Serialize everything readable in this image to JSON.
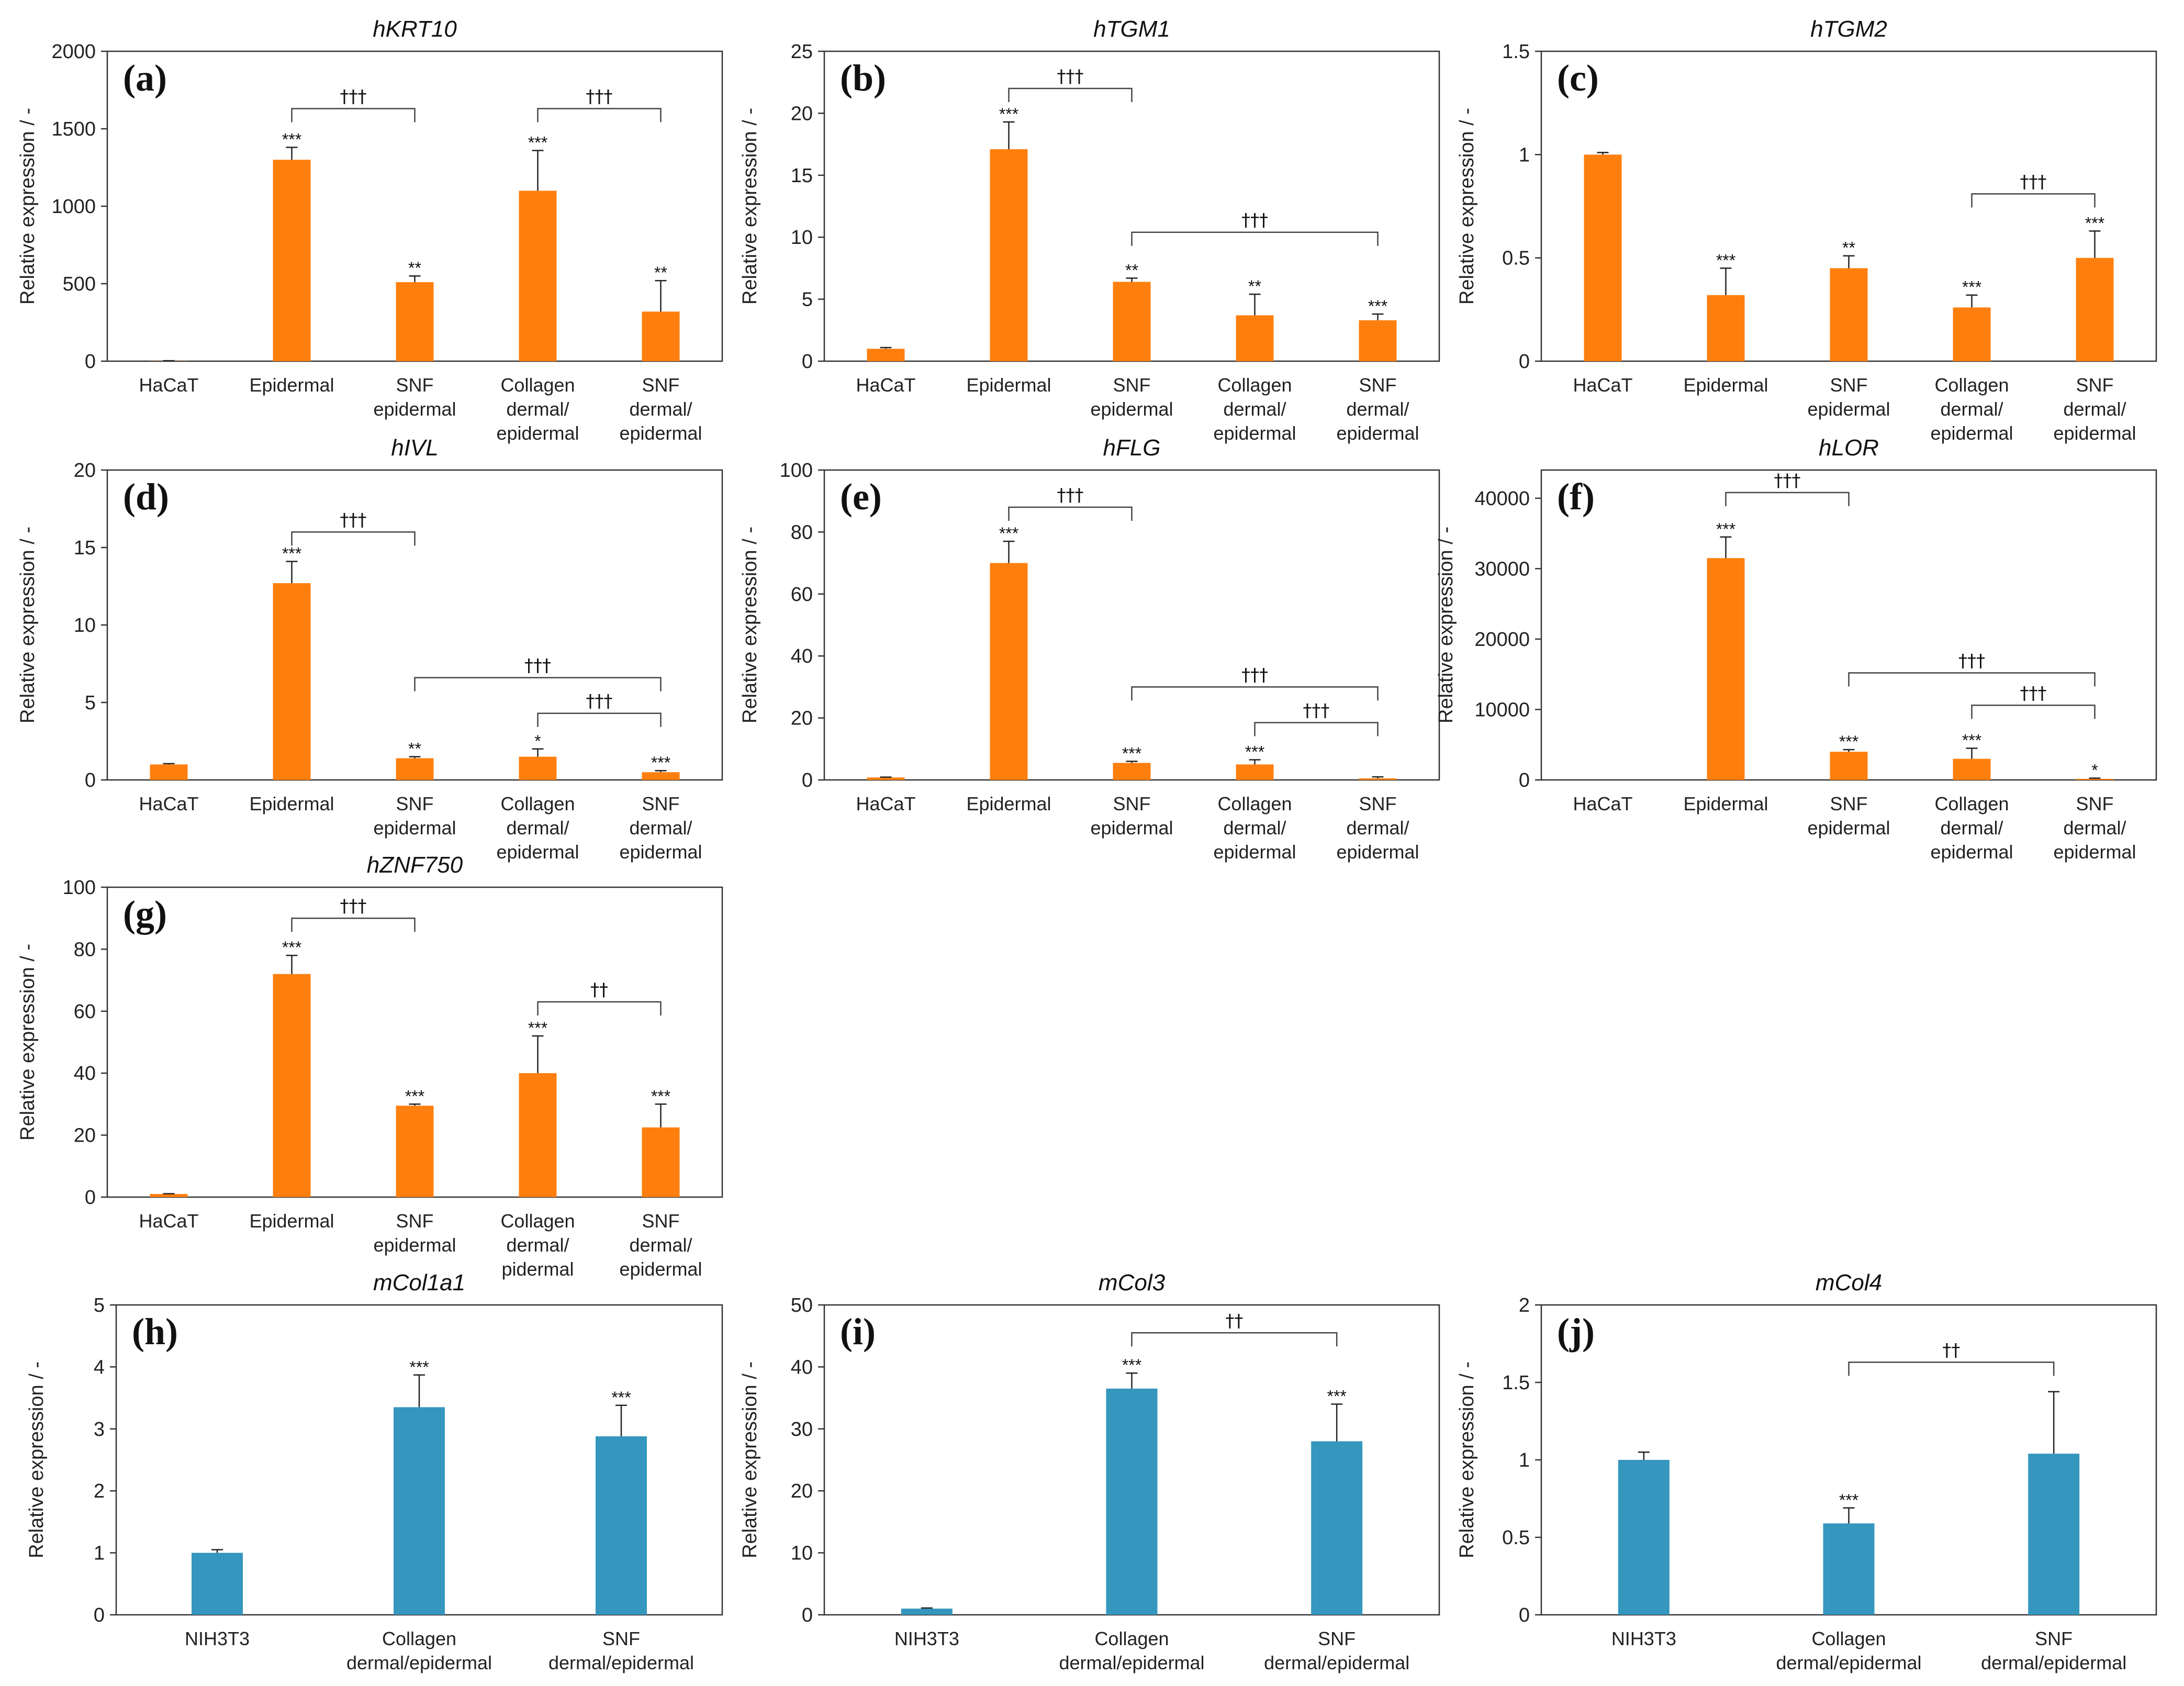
{
  "colors": {
    "orange": "#FF7F0E",
    "blue": "#3596BE",
    "axis": "#333333"
  },
  "y_label": "Relative expression / -",
  "chart_data": [
    {
      "id": "a",
      "type": "bar",
      "label": "(a)",
      "title": "hKRT10",
      "color": "orange",
      "categories": [
        "HaCaT",
        "Epidermal",
        "SNF|epidermal",
        "Collagen|dermal/|epidermal",
        "SNF|dermal/|epidermal"
      ],
      "values": [
        1,
        1300,
        510,
        1100,
        320
      ],
      "errors": [
        2,
        80,
        40,
        260,
        200
      ],
      "ylim": [
        0,
        2000
      ],
      "yticks": [
        "0",
        "500",
        "1000",
        "1500",
        "2000"
      ],
      "stars": [
        "",
        "***",
        "**",
        "***",
        "**"
      ],
      "brackets": [
        {
          "from": 1,
          "to": 2,
          "sig": "†††",
          "y": 1630
        },
        {
          "from": 3,
          "to": 4,
          "sig": "†††",
          "y": 1630
        }
      ]
    },
    {
      "id": "b",
      "type": "bar",
      "label": "(b)",
      "title": "hTGM1",
      "color": "orange",
      "categories": [
        "HaCaT",
        "Epidermal",
        "SNF|epidermal",
        "Collagen|dermal/|epidermal",
        "SNF|dermal/|epidermal"
      ],
      "values": [
        1,
        17.1,
        6.4,
        3.7,
        3.3
      ],
      "errors": [
        0.1,
        2.2,
        0.3,
        1.7,
        0.5
      ],
      "ylim": [
        0,
        25
      ],
      "yticks": [
        "0",
        "5",
        "10",
        "15",
        "20",
        "25"
      ],
      "stars": [
        "",
        "***",
        "**",
        "**",
        "***"
      ],
      "brackets": [
        {
          "from": 1,
          "to": 2,
          "sig": "†††",
          "y": 22
        },
        {
          "from": 2,
          "to": 4,
          "sig": "†††",
          "y": 10.4
        }
      ]
    },
    {
      "id": "c",
      "type": "bar",
      "label": "(c)",
      "title": "hTGM2",
      "color": "orange",
      "categories": [
        "HaCaT",
        "Epidermal",
        "SNF|epidermal",
        "Collagen|dermal/|epidermal",
        "SNF|dermal/|epidermal"
      ],
      "values": [
        1,
        0.32,
        0.45,
        0.26,
        0.5
      ],
      "errors": [
        0.01,
        0.13,
        0.06,
        0.06,
        0.13
      ],
      "ylim": [
        0,
        1.5
      ],
      "yticks": [
        "0",
        "0.5",
        "1",
        "1.5"
      ],
      "stars": [
        "",
        "***",
        "**",
        "***",
        "***"
      ],
      "brackets": [
        {
          "from": 3,
          "to": 4,
          "sig": "†††",
          "y": 0.81
        }
      ]
    },
    {
      "id": "d",
      "type": "bar",
      "label": "(d)",
      "title": "hIVL",
      "color": "orange",
      "categories": [
        "HaCaT",
        "Epidermal",
        "SNF|epidermal",
        "Collagen|dermal/|epidermal",
        "SNF|dermal/|epidermal"
      ],
      "values": [
        1,
        12.7,
        1.4,
        1.5,
        0.5
      ],
      "errors": [
        0.05,
        1.4,
        0.1,
        0.5,
        0.1
      ],
      "ylim": [
        0,
        20
      ],
      "yticks": [
        "0",
        "5",
        "10",
        "15",
        "20"
      ],
      "stars": [
        "",
        "***",
        "**",
        "*",
        "***"
      ],
      "brackets": [
        {
          "from": 1,
          "to": 2,
          "sig": "†††",
          "y": 16
        },
        {
          "from": 2,
          "to": 4,
          "sig": "†††",
          "y": 6.6
        },
        {
          "from": 3,
          "to": 4,
          "sig": "†††",
          "y": 4.3
        }
      ]
    },
    {
      "id": "e",
      "type": "bar",
      "label": "(e)",
      "title": "hFLG",
      "color": "orange",
      "categories": [
        "HaCaT",
        "Epidermal",
        "SNF|epidermal",
        "Collagen|dermal/|epidermal",
        "SNF|dermal/|epidermal"
      ],
      "values": [
        0.8,
        70,
        5.5,
        5,
        0.5
      ],
      "errors": [
        0.1,
        7,
        0.5,
        1.5,
        0.5
      ],
      "ylim": [
        0,
        100
      ],
      "yticks": [
        "0",
        "20",
        "40",
        "60",
        "80",
        "100"
      ],
      "stars": [
        "",
        "***",
        "***",
        "***",
        ""
      ],
      "brackets": [
        {
          "from": 1,
          "to": 2,
          "sig": "†††",
          "y": 88
        },
        {
          "from": 2,
          "to": 4,
          "sig": "†††",
          "y": 30
        },
        {
          "from": 3,
          "to": 4,
          "sig": "†††",
          "y": 18.5
        }
      ]
    },
    {
      "id": "f",
      "type": "bar",
      "label": "(f)",
      "title": "hLOR",
      "color": "orange",
      "categories": [
        "HaCaT",
        "Epidermal",
        "SNF|epidermal",
        "Collagen|dermal/|epidermal",
        "SNF|dermal/|epidermal"
      ],
      "values": [
        1,
        31500,
        4000,
        3000,
        150
      ],
      "errors": [
        0,
        3000,
        300,
        1500,
        100
      ],
      "ylim": [
        0,
        44000
      ],
      "yticks": [
        "0",
        "10000",
        "20000",
        "30000",
        "40000"
      ],
      "stars": [
        "",
        "***",
        "***",
        "***",
        "*"
      ],
      "brackets": [
        {
          "from": 1,
          "to": 2,
          "sig": "†††",
          "y": 40800
        },
        {
          "from": 2,
          "to": 4,
          "sig": "†††",
          "y": 15200
        },
        {
          "from": 3,
          "to": 4,
          "sig": "†††",
          "y": 10600
        }
      ]
    },
    {
      "id": "g",
      "type": "bar",
      "label": "(g)",
      "title": "hZNF750",
      "color": "orange",
      "categories": [
        "HaCaT",
        "Epidermal",
        "SNF|epidermal",
        "Collagen|dermal/|pidermal",
        "SNF|dermal/|epidermal"
      ],
      "values": [
        1,
        72,
        29.5,
        40,
        22.5
      ],
      "errors": [
        0.1,
        6,
        0.5,
        12,
        7.5
      ],
      "ylim": [
        0,
        100
      ],
      "yticks": [
        "0",
        "20",
        "40",
        "60",
        "80",
        "100"
      ],
      "stars": [
        "",
        "***",
        "***",
        "***",
        "***"
      ],
      "brackets": [
        {
          "from": 1,
          "to": 2,
          "sig": "†††",
          "y": 90
        },
        {
          "from": 3,
          "to": 4,
          "sig": "††",
          "y": 63
        }
      ]
    },
    {
      "id": "h",
      "type": "bar",
      "label": "(h)",
      "title": "mCol1a1",
      "color": "blue",
      "categories": [
        "NIH3T3",
        "Collagen|dermal/epidermal",
        "SNF|dermal/epidermal"
      ],
      "values": [
        1,
        3.35,
        2.88
      ],
      "errors": [
        0.05,
        0.52,
        0.5
      ],
      "ylim": [
        0,
        5
      ],
      "yticks": [
        "0",
        "1",
        "2",
        "3",
        "4",
        "5"
      ],
      "stars": [
        "",
        "***",
        "***"
      ],
      "brackets": []
    },
    {
      "id": "i",
      "type": "bar",
      "label": "(i)",
      "title": "mCol3",
      "color": "blue",
      "categories": [
        "NIH3T3",
        "Collagen|dermal/epidermal",
        "SNF|dermal/epidermal"
      ],
      "values": [
        1,
        36.5,
        28
      ],
      "errors": [
        0.1,
        2.5,
        6
      ],
      "ylim": [
        0,
        50
      ],
      "yticks": [
        "0",
        "10",
        "20",
        "30",
        "40",
        "50"
      ],
      "stars": [
        "",
        "***",
        "***"
      ],
      "brackets": [
        {
          "from": 1,
          "to": 2,
          "sig": "††",
          "y": 45.5
        }
      ]
    },
    {
      "id": "j",
      "type": "bar",
      "label": "(j)",
      "title": "mCol4",
      "color": "blue",
      "categories": [
        "NIH3T3",
        "Collagen|dermal/epidermal",
        "SNF|dermal/epidermal"
      ],
      "values": [
        1,
        0.59,
        1.04
      ],
      "errors": [
        0.05,
        0.1,
        0.4
      ],
      "ylim": [
        0,
        2
      ],
      "yticks": [
        "0",
        "0.5",
        "1",
        "1.5",
        "2"
      ],
      "stars": [
        "",
        "***",
        ""
      ],
      "brackets": [
        {
          "from": 1,
          "to": 2,
          "sig": "††",
          "y": 1.63
        }
      ]
    }
  ]
}
